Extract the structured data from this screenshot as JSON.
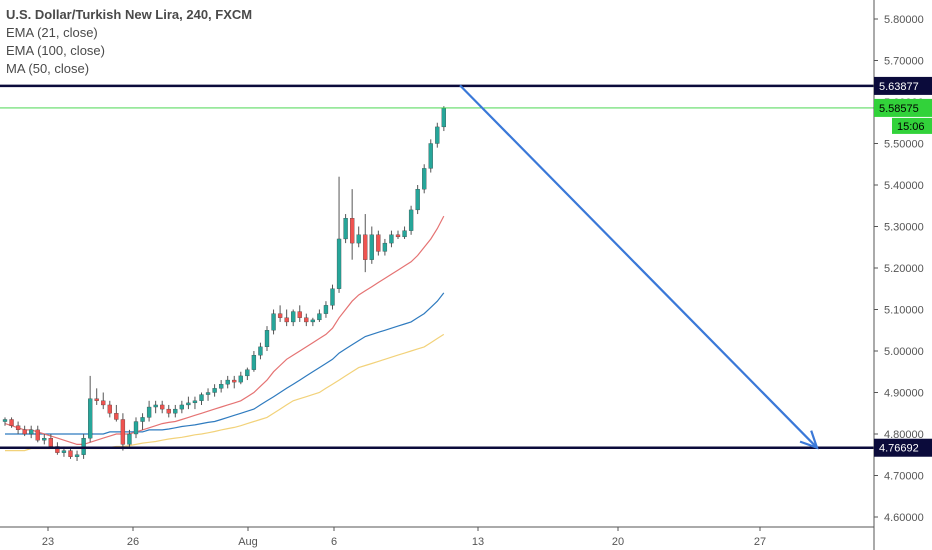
{
  "legend": {
    "title": "U.S. Dollar/Turkish New Lira, 240, FXCM",
    "lines": [
      "EMA (21, close)",
      "EMA (100, close)",
      "MA (50, close)"
    ]
  },
  "colors": {
    "up": "#26a69a",
    "down": "#ef5350",
    "ema21": "#e57373",
    "ema100": "#2f7bbf",
    "ma50": "#f2d27a",
    "hline": "#0b0b3b",
    "arrow": "#3a78d8",
    "current": "#32d23a",
    "grid_axis": "#555555"
  },
  "chart_data": {
    "type": "candlestick",
    "symbol": "U.S. Dollar/Turkish New Lira",
    "timeframe": "240",
    "source": "FXCM",
    "y_ticks": [
      "5.80000",
      "5.70000",
      "5.60000",
      "5.50000",
      "5.40000",
      "5.30000",
      "5.20000",
      "5.10000",
      "5.00000",
      "4.90000",
      "4.80000",
      "4.70000",
      "4.60000"
    ],
    "ylim": [
      4.57,
      5.845
    ],
    "x_ticks": [
      "23",
      "26",
      "Aug",
      "6",
      "13",
      "20",
      "27"
    ],
    "horizontal_levels": [
      {
        "label": "5.63877",
        "value": 5.63877
      },
      {
        "label": "4.76692",
        "value": 4.76692
      }
    ],
    "current_price": {
      "label": "5.58575",
      "value": 5.58575,
      "countdown": "15:06"
    },
    "arrow": {
      "from_value": 5.64,
      "to_value": 4.767
    },
    "candles": [
      [
        4.83,
        4.84,
        4.82,
        4.835
      ],
      [
        4.835,
        4.84,
        4.815,
        4.82
      ],
      [
        4.82,
        4.83,
        4.8,
        4.81
      ],
      [
        4.81,
        4.82,
        4.795,
        4.8
      ],
      [
        4.8,
        4.82,
        4.79,
        4.81
      ],
      [
        4.81,
        4.82,
        4.78,
        4.785
      ],
      [
        4.785,
        4.8,
        4.775,
        4.79
      ],
      [
        4.79,
        4.8,
        4.765,
        4.77
      ],
      [
        4.77,
        4.78,
        4.75,
        4.755
      ],
      [
        4.755,
        4.77,
        4.745,
        4.76
      ],
      [
        4.76,
        4.77,
        4.74,
        4.745
      ],
      [
        4.745,
        4.76,
        4.735,
        4.75
      ],
      [
        4.75,
        4.8,
        4.74,
        4.79
      ],
      [
        4.79,
        4.94,
        4.78,
        4.885
      ],
      [
        4.885,
        4.91,
        4.87,
        4.88
      ],
      [
        4.88,
        4.9,
        4.86,
        4.87
      ],
      [
        4.87,
        4.88,
        4.84,
        4.85
      ],
      [
        4.85,
        4.87,
        4.83,
        4.835
      ],
      [
        4.835,
        4.85,
        4.76,
        4.775
      ],
      [
        4.775,
        4.81,
        4.77,
        4.8
      ],
      [
        4.8,
        4.84,
        4.79,
        4.83
      ],
      [
        4.83,
        4.85,
        4.81,
        4.84
      ],
      [
        4.84,
        4.88,
        4.83,
        4.865
      ],
      [
        4.865,
        4.88,
        4.85,
        4.87
      ],
      [
        4.87,
        4.88,
        4.85,
        4.86
      ],
      [
        4.86,
        4.87,
        4.84,
        4.85
      ],
      [
        4.85,
        4.87,
        4.84,
        4.86
      ],
      [
        4.86,
        4.88,
        4.85,
        4.87
      ],
      [
        4.87,
        4.89,
        4.86,
        4.875
      ],
      [
        4.875,
        4.89,
        4.86,
        4.88
      ],
      [
        4.88,
        4.9,
        4.87,
        4.895
      ],
      [
        4.895,
        4.91,
        4.88,
        4.9
      ],
      [
        4.9,
        4.92,
        4.89,
        4.91
      ],
      [
        4.91,
        4.93,
        4.9,
        4.92
      ],
      [
        4.92,
        4.94,
        4.91,
        4.93
      ],
      [
        4.93,
        4.94,
        4.91,
        4.925
      ],
      [
        4.925,
        4.95,
        4.92,
        4.94
      ],
      [
        4.94,
        4.96,
        4.93,
        4.955
      ],
      [
        4.955,
        5.0,
        4.95,
        4.99
      ],
      [
        4.99,
        5.02,
        4.98,
        5.01
      ],
      [
        5.01,
        5.06,
        5.0,
        5.05
      ],
      [
        5.05,
        5.1,
        5.04,
        5.09
      ],
      [
        5.09,
        5.11,
        5.07,
        5.08
      ],
      [
        5.08,
        5.1,
        5.06,
        5.07
      ],
      [
        5.07,
        5.1,
        5.06,
        5.095
      ],
      [
        5.095,
        5.11,
        5.07,
        5.08
      ],
      [
        5.08,
        5.09,
        5.06,
        5.07
      ],
      [
        5.07,
        5.08,
        5.06,
        5.075
      ],
      [
        5.075,
        5.1,
        5.07,
        5.09
      ],
      [
        5.09,
        5.12,
        5.08,
        5.11
      ],
      [
        5.11,
        5.16,
        5.1,
        5.15
      ],
      [
        5.15,
        5.42,
        5.14,
        5.27
      ],
      [
        5.27,
        5.33,
        5.26,
        5.32
      ],
      [
        5.32,
        5.39,
        5.22,
        5.26
      ],
      [
        5.26,
        5.3,
        5.25,
        5.28
      ],
      [
        5.28,
        5.33,
        5.19,
        5.22
      ],
      [
        5.22,
        5.3,
        5.21,
        5.28
      ],
      [
        5.28,
        5.29,
        5.23,
        5.24
      ],
      [
        5.24,
        5.27,
        5.23,
        5.26
      ],
      [
        5.26,
        5.29,
        5.25,
        5.28
      ],
      [
        5.28,
        5.29,
        5.27,
        5.275
      ],
      [
        5.275,
        5.3,
        5.27,
        5.29
      ],
      [
        5.29,
        5.35,
        5.28,
        5.34
      ],
      [
        5.34,
        5.4,
        5.33,
        5.39
      ],
      [
        5.39,
        5.45,
        5.38,
        5.44
      ],
      [
        5.44,
        5.51,
        5.43,
        5.5
      ],
      [
        5.5,
        5.55,
        5.49,
        5.54
      ],
      [
        5.54,
        5.59,
        5.53,
        5.585
      ]
    ],
    "ema21": [
      4.825,
      4.82,
      4.815,
      4.81,
      4.81,
      4.805,
      4.8,
      4.795,
      4.79,
      4.785,
      4.78,
      4.775,
      4.775,
      4.78,
      4.785,
      4.79,
      4.795,
      4.8,
      4.8,
      4.8,
      4.805,
      4.81,
      4.815,
      4.82,
      4.825,
      4.828,
      4.83,
      4.835,
      4.84,
      4.845,
      4.85,
      4.855,
      4.86,
      4.865,
      4.87,
      4.875,
      4.88,
      4.89,
      4.9,
      4.915,
      4.93,
      4.95,
      4.965,
      4.98,
      4.99,
      5.0,
      5.01,
      5.02,
      5.03,
      5.04,
      5.055,
      5.08,
      5.1,
      5.12,
      5.135,
      5.145,
      5.155,
      5.165,
      5.175,
      5.185,
      5.195,
      5.205,
      5.215,
      5.23,
      5.25,
      5.27,
      5.295,
      5.325
    ],
    "ema100": [
      4.8,
      4.8,
      4.8,
      4.8,
      4.8,
      4.8,
      4.8,
      4.8,
      4.8,
      4.8,
      4.8,
      4.8,
      4.8,
      4.8,
      4.8,
      4.8,
      4.805,
      4.805,
      4.805,
      4.805,
      4.805,
      4.805,
      4.81,
      4.81,
      4.81,
      4.812,
      4.815,
      4.818,
      4.82,
      4.822,
      4.825,
      4.828,
      4.83,
      4.835,
      4.84,
      4.845,
      4.85,
      4.855,
      4.86,
      4.87,
      4.88,
      4.89,
      4.9,
      4.91,
      4.92,
      4.93,
      4.94,
      4.95,
      4.96,
      4.97,
      4.98,
      4.995,
      5.005,
      5.015,
      5.025,
      5.035,
      5.04,
      5.045,
      5.05,
      5.055,
      5.06,
      5.065,
      5.07,
      5.08,
      5.09,
      5.105,
      5.12,
      5.14
    ],
    "ma50": [
      4.76,
      4.76,
      4.76,
      4.76,
      4.765,
      4.765,
      4.765,
      4.765,
      4.765,
      4.765,
      4.765,
      4.765,
      4.765,
      4.765,
      4.765,
      4.765,
      4.768,
      4.77,
      4.77,
      4.772,
      4.775,
      4.778,
      4.78,
      4.782,
      4.785,
      4.788,
      4.79,
      4.792,
      4.795,
      4.798,
      4.8,
      4.803,
      4.806,
      4.81,
      4.813,
      4.816,
      4.82,
      4.825,
      4.83,
      4.835,
      4.84,
      4.85,
      4.86,
      4.87,
      4.88,
      4.885,
      4.89,
      4.895,
      4.9,
      4.91,
      4.92,
      4.93,
      4.94,
      4.95,
      4.96,
      4.965,
      4.97,
      4.975,
      4.98,
      4.985,
      4.99,
      4.995,
      5.0,
      5.005,
      5.01,
      5.02,
      5.03,
      5.04
    ]
  }
}
